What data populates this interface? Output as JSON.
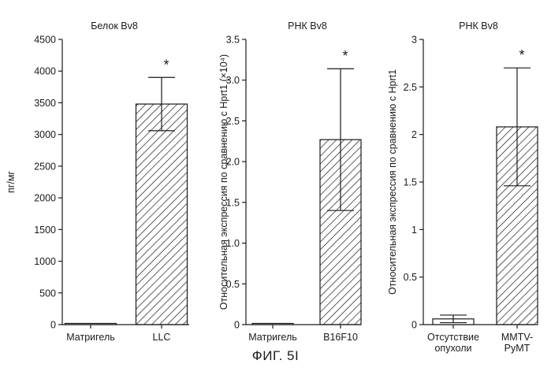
{
  "figure_caption": "ФИГ. 5I",
  "colors": {
    "axis": "#1a1a1a",
    "hatch": "#1a1a1a",
    "fill": "#ffffff"
  },
  "chart_data": [
    {
      "type": "bar",
      "title": "Белок Bv8",
      "ylabel": "пг/мг",
      "categories": [
        "Матригель",
        "LLC"
      ],
      "values": [
        10,
        3480
      ],
      "error": [
        0,
        420
      ],
      "significance": [
        "",
        "*"
      ],
      "hatched": [
        false,
        true
      ],
      "ylim": [
        0,
        4500
      ],
      "yticks": [
        0,
        500,
        1000,
        1500,
        2000,
        2500,
        3000,
        3500,
        4000,
        4500
      ],
      "ytick_labels": [
        "0",
        "500",
        "1000",
        "1500",
        "2000",
        "2500",
        "3000",
        "3500",
        "4000",
        "4500"
      ],
      "grid": false
    },
    {
      "type": "bar",
      "title": "РНК Bv8",
      "ylabel": "Относительная экспрессия по сравнению с Hprt1 (×10⁴)",
      "categories": [
        "Матригель",
        "B16F10"
      ],
      "values": [
        0,
        2.27
      ],
      "error": [
        0,
        0.87
      ],
      "significance": [
        "",
        "*"
      ],
      "hatched": [
        false,
        true
      ],
      "ylim": [
        0,
        3.5
      ],
      "yticks": [
        0,
        0.5,
        1.0,
        1.5,
        2.0,
        2.5,
        3.0,
        3.5
      ],
      "ytick_labels": [
        "0",
        "0.5",
        "1.0",
        "1.5",
        "2.0",
        "2.5",
        "3.0",
        "3.5"
      ],
      "grid": false
    },
    {
      "type": "bar",
      "title": "РНК Bv8",
      "ylabel": "Относительная экспрессия по сравнению с Hprt1",
      "categories": [
        "Отсутствие опухоли",
        "MMTV-PyMT"
      ],
      "category_lines": [
        [
          "Отсутствие",
          "опухоли"
        ],
        [
          "MMTV-",
          "PyMT"
        ]
      ],
      "values": [
        0.06,
        2.08
      ],
      "error": [
        0.04,
        0.62
      ],
      "significance": [
        "",
        "*"
      ],
      "hatched": [
        false,
        true
      ],
      "ylim": [
        0,
        3
      ],
      "yticks": [
        0,
        0.5,
        1,
        1.5,
        2,
        2.5,
        3
      ],
      "ytick_labels": [
        "0",
        "0.5",
        "1",
        "1.5",
        "2",
        "2.5",
        "3"
      ],
      "grid": false
    }
  ]
}
